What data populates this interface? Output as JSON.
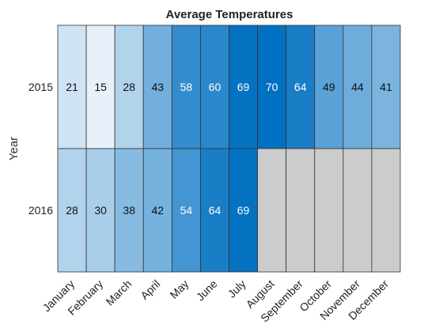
{
  "chart_data": {
    "type": "heatmap",
    "title": "Average Temperatures",
    "xlabel": "",
    "ylabel": "Year",
    "x_categories": [
      "January",
      "February",
      "March",
      "April",
      "May",
      "June",
      "July",
      "August",
      "September",
      "October",
      "November",
      "December"
    ],
    "y_categories": [
      "2015",
      "2016"
    ],
    "values": [
      [
        21,
        15,
        28,
        43,
        58,
        60,
        69,
        70,
        64,
        49,
        44,
        41
      ],
      [
        28,
        30,
        38,
        42,
        54,
        64,
        69,
        null,
        null,
        null,
        null,
        null
      ]
    ],
    "colormap": {
      "low": "#e8f1fa",
      "high": "#0070c0",
      "missing": "#cccccc",
      "grid": "#333333"
    },
    "color_range": [
      15,
      70
    ]
  }
}
